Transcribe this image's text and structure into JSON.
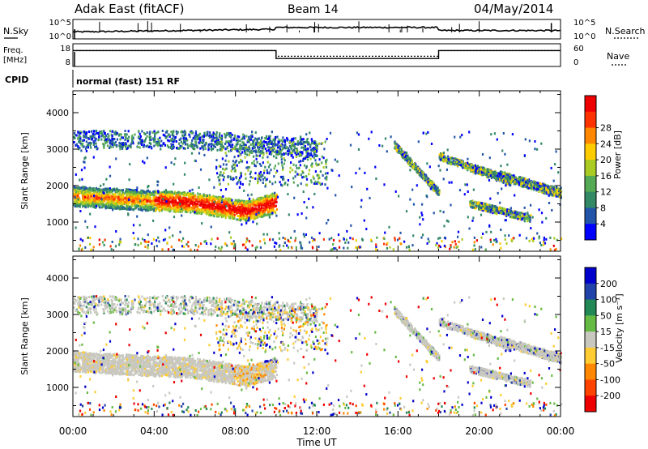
{
  "header": {
    "station": "Adak East (fitACF)",
    "beam": "Beam 14",
    "date": "04/May/2014"
  },
  "chart_data": [
    {
      "panel": "noise",
      "type": "line",
      "left_label": "N.Sky",
      "right_label": "N.Search",
      "left_ticks": [
        "10^5",
        "10^0"
      ],
      "right_ticks": [
        "10^5",
        "10^0"
      ],
      "step_times_h": [
        0,
        10,
        18,
        24
      ],
      "step_levels": [
        0.35,
        0.55,
        0.38
      ]
    },
    {
      "panel": "frequency",
      "type": "line",
      "left_label_1": "Freq.",
      "left_label_2": "[MHz]",
      "right_label": "Nave",
      "left_ticks": [
        "18",
        "8"
      ],
      "right_ticks": [
        "60",
        "0"
      ],
      "freq_steps": [
        {
          "from": 0,
          "to": 10,
          "level": 0.3
        },
        {
          "from": 10,
          "to": 18,
          "level": 0.65
        },
        {
          "from": 18,
          "to": 24,
          "level": 0.3
        }
      ],
      "nave_steps": [
        {
          "from": 0,
          "to": 10,
          "level": 0.55
        },
        {
          "from": 10,
          "to": 18,
          "level": 0.8
        },
        {
          "from": 18,
          "to": 24,
          "level": 0.55
        }
      ]
    },
    {
      "panel": "cpid",
      "label": "CPID",
      "text": "normal (fast) 151 RF"
    },
    {
      "panel": "power",
      "type": "heatmap",
      "ylabel": "Slant Range [km]",
      "yticks": [
        1000,
        2000,
        3000,
        4000
      ],
      "ylim": [
        200,
        4600
      ],
      "colorbar_label": "Power [dB]",
      "colorbar_ticks": [
        "4",
        "8",
        "12",
        "16",
        "20",
        "24",
        "28"
      ],
      "colors": [
        "#0000ff",
        "#2255aa",
        "#338866",
        "#55aa55",
        "#aacc22",
        "#ffcc00",
        "#ff8800",
        "#ff3300",
        "#ee0000"
      ]
    },
    {
      "panel": "velocity",
      "type": "heatmap",
      "ylabel": "Slant Range [km]",
      "yticks": [
        1000,
        2000,
        3000,
        4000
      ],
      "ylim": [
        200,
        4600
      ],
      "xlabel": "Time UT",
      "xticks": [
        "00:00",
        "04:00",
        "08:00",
        "12:00",
        "16:00",
        "20:00",
        "00:00"
      ],
      "colorbar_label": "Velocity [m s⁻¹]",
      "colorbar_ticks": [
        "200",
        "100",
        "50",
        "15",
        "-15",
        "-50",
        "-100",
        "-200"
      ],
      "colors": [
        "#0000cc",
        "#2244aa",
        "#228855",
        "#66bb44",
        "#c8c8c0",
        "#ffcc33",
        "#ff8800",
        "#ff4400",
        "#ee0000"
      ]
    }
  ]
}
